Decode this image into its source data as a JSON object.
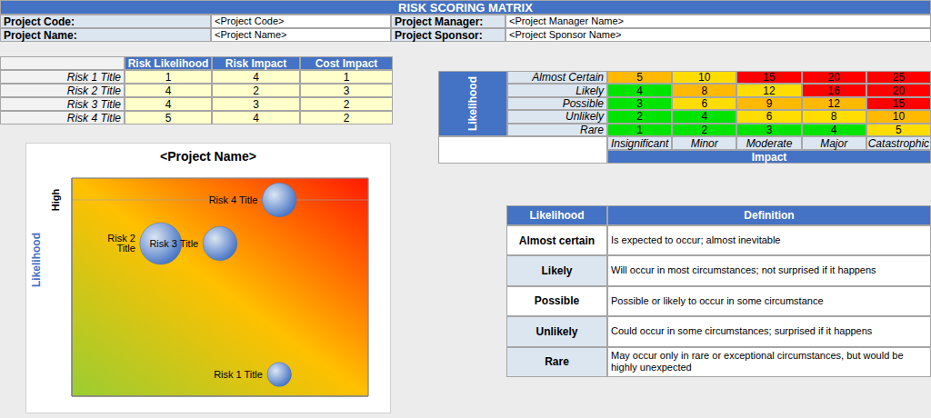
{
  "header": {
    "title": "RISK SCORING MATRIX"
  },
  "project_info": {
    "left": [
      {
        "label": "Project Code:",
        "value": "<Project Code>"
      },
      {
        "label": "Project Name:",
        "value": "<Project Name>"
      }
    ],
    "right": [
      {
        "label": "Project Manager:",
        "value": "<Project Manager Name>"
      },
      {
        "label": "Project Sponsor:",
        "value": "<Project Sponsor Name>"
      }
    ]
  },
  "risk_table": {
    "columns": [
      "Risk Likelihood",
      "Risk Impact",
      "Cost Impact"
    ],
    "rows": [
      {
        "name": "Risk 1 Title",
        "values": [
          1,
          4,
          1
        ]
      },
      {
        "name": "Risk 2 Title",
        "values": [
          4,
          2,
          3
        ]
      },
      {
        "name": "Risk 3 Title",
        "values": [
          4,
          3,
          2
        ]
      },
      {
        "name": "Risk 4 Title",
        "values": [
          5,
          4,
          2
        ]
      }
    ]
  },
  "scoring_matrix": {
    "row_axis_title": "Likelihood",
    "column_axis_title": "Impact",
    "columns": [
      "Insignificant",
      "Minor",
      "Moderate",
      "Major",
      "Catastrophic"
    ],
    "rows": [
      {
        "label": "Almost Certain",
        "cells": [
          {
            "value": 5,
            "color": "#ffb900"
          },
          {
            "value": 10,
            "color": "#ffdd00"
          },
          {
            "value": 15,
            "color": "#ff0000"
          },
          {
            "value": 20,
            "color": "#ff0000"
          },
          {
            "value": 25,
            "color": "#ff0000"
          }
        ]
      },
      {
        "label": "Likely",
        "cells": [
          {
            "value": 4,
            "color": "#00e400"
          },
          {
            "value": 8,
            "color": "#ffb900"
          },
          {
            "value": 12,
            "color": "#ffdd00"
          },
          {
            "value": 16,
            "color": "#ff0000"
          },
          {
            "value": 20,
            "color": "#ff0000"
          }
        ]
      },
      {
        "label": "Possible",
        "cells": [
          {
            "value": 3,
            "color": "#00e400"
          },
          {
            "value": 6,
            "color": "#ffdd00"
          },
          {
            "value": 9,
            "color": "#ffb900"
          },
          {
            "value": 12,
            "color": "#ffb900"
          },
          {
            "value": 15,
            "color": "#ff0000"
          }
        ]
      },
      {
        "label": "Unlikely",
        "cells": [
          {
            "value": 2,
            "color": "#00e400"
          },
          {
            "value": 4,
            "color": "#00e400"
          },
          {
            "value": 6,
            "color": "#ffdd00"
          },
          {
            "value": 8,
            "color": "#ffdd00"
          },
          {
            "value": 10,
            "color": "#ffb900"
          }
        ]
      },
      {
        "label": "Rare",
        "cells": [
          {
            "value": 1,
            "color": "#00e400"
          },
          {
            "value": 2,
            "color": "#00e400"
          },
          {
            "value": 3,
            "color": "#00e400"
          },
          {
            "value": 4,
            "color": "#00e400"
          },
          {
            "value": 5,
            "color": "#ffdd00"
          }
        ]
      }
    ]
  },
  "definitions": {
    "header": [
      "Likelihood",
      "Definition"
    ],
    "rows": [
      {
        "label": "Almost certain",
        "definition": "Is expected to occur; almost inevitable"
      },
      {
        "label": "Likely",
        "definition": "Will occur in most circumstances; not surprised if it happens"
      },
      {
        "label": "Possible",
        "definition": "Possible or likely to occur in some circumstance"
      },
      {
        "label": "Unlikely",
        "definition": "Could occur in some circumstances; surprised if it happens"
      },
      {
        "label": "Rare",
        "definition": "May occur only in rare or exceptional circumstances, but would be highly unexpected"
      }
    ]
  },
  "chart_data": {
    "type": "bubble",
    "title": "<Project Name>",
    "y_label": "Likelihood",
    "points": [
      {
        "name": "Risk 1 Title",
        "x": 4,
        "y": 1,
        "size": 1
      },
      {
        "name": "Risk 2 Title",
        "x": 2,
        "y": 4,
        "size": 3
      },
      {
        "name": "Risk 3 Title",
        "x": 3,
        "y": 4,
        "size": 2
      },
      {
        "name": "Risk 4 Title",
        "x": 4,
        "y": 5,
        "size": 2
      }
    ],
    "color": "#4472c4",
    "xlim": [
      0.5,
      5.5
    ],
    "ylim": [
      0.5,
      5.5
    ],
    "xticks": [
      0.5,
      1.5,
      2.5,
      3.5,
      4.5,
      5.5
    ],
    "yticks": [
      {
        "value": 5,
        "label": "High"
      }
    ],
    "tick_labels": "y",
    "grid": true,
    "data_labels": true
  }
}
